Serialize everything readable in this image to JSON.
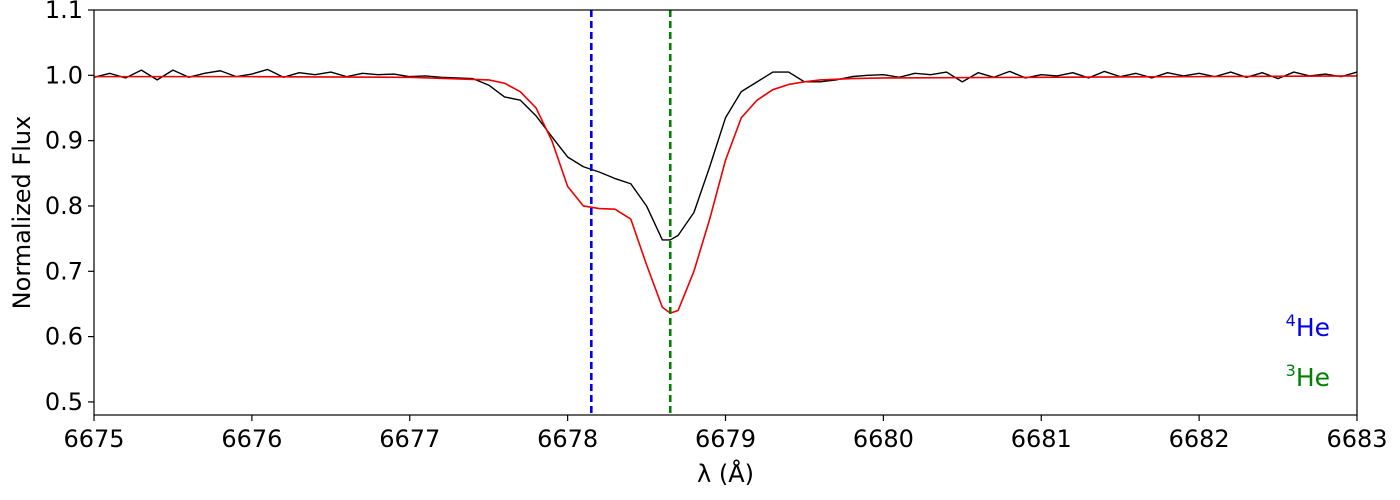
{
  "chart_data": {
    "type": "line",
    "xlabel": "λ (Å)",
    "ylabel": "Normalized Flux",
    "xlim": [
      6675,
      6683
    ],
    "ylim": [
      0.48,
      1.1
    ],
    "xticks": [
      "6675",
      "6676",
      "6677",
      "6678",
      "6679",
      "6680",
      "6681",
      "6682",
      "6683"
    ],
    "yticks": [
      "0.5",
      "0.6",
      "0.7",
      "0.8",
      "0.9",
      "1.0",
      "1.1"
    ],
    "grid": false,
    "vertical_lines": [
      {
        "x": 6678.15,
        "color": "#0000ee",
        "style": "dashed"
      },
      {
        "x": 6678.65,
        "color": "#008000",
        "style": "dashed"
      }
    ],
    "annotations": [
      {
        "sup": "4",
        "text": "He",
        "color": "#0000ee"
      },
      {
        "sup": "3",
        "text": "He",
        "color": "#008000"
      }
    ],
    "series": [
      {
        "color": "#000000",
        "x": [
          6675.0,
          6675.1,
          6675.2,
          6675.3,
          6675.4,
          6675.5,
          6675.6,
          6675.7,
          6675.8,
          6675.9,
          6676.0,
          6676.1,
          6676.2,
          6676.3,
          6676.4,
          6676.5,
          6676.6,
          6676.7,
          6676.8,
          6676.9,
          6677.0,
          6677.1,
          6677.2,
          6677.3,
          6677.4,
          6677.5,
          6677.6,
          6677.7,
          6677.8,
          6677.9,
          6678.0,
          6678.1,
          6678.2,
          6678.3,
          6678.4,
          6678.5,
          6678.6,
          6678.65,
          6678.7,
          6678.8,
          6678.9,
          6679.0,
          6679.1,
          6679.2,
          6679.3,
          6679.4,
          6679.5,
          6679.6,
          6679.7,
          6679.8,
          6679.9,
          6680.0,
          6680.1,
          6680.2,
          6680.3,
          6680.4,
          6680.5,
          6680.6,
          6680.7,
          6680.8,
          6680.9,
          6681.0,
          6681.1,
          6681.2,
          6681.3,
          6681.4,
          6681.5,
          6681.6,
          6681.7,
          6681.8,
          6681.9,
          6682.0,
          6682.1,
          6682.2,
          6682.3,
          6682.4,
          6682.5,
          6682.6,
          6682.7,
          6682.8,
          6682.9,
          6683.0
        ],
        "y": [
          0.997,
          1.003,
          0.996,
          1.008,
          0.993,
          1.008,
          0.997,
          1.003,
          1.007,
          0.998,
          1.002,
          1.009,
          0.997,
          1.004,
          1.001,
          1.005,
          0.998,
          1.003,
          1.001,
          1.002,
          0.998,
          0.999,
          0.997,
          0.996,
          0.995,
          0.985,
          0.967,
          0.962,
          0.938,
          0.906,
          0.875,
          0.86,
          0.852,
          0.842,
          0.834,
          0.8,
          0.748,
          0.748,
          0.755,
          0.79,
          0.86,
          0.935,
          0.975,
          0.99,
          1.005,
          1.005,
          0.99,
          0.99,
          0.993,
          0.998,
          1.0,
          1.001,
          0.997,
          1.003,
          1.001,
          1.005,
          0.99,
          1.004,
          0.997,
          1.006,
          0.996,
          1.001,
          0.999,
          1.004,
          0.996,
          1.006,
          0.998,
          1.003,
          0.996,
          1.004,
          0.999,
          1.003,
          0.998,
          1.005,
          0.997,
          1.004,
          0.995,
          1.005,
          0.999,
          1.002,
          0.998,
          1.005
        ]
      },
      {
        "color": "#ee0000",
        "x": [
          6675.0,
          6676.0,
          6677.0,
          6677.5,
          6677.6,
          6677.7,
          6677.8,
          6677.9,
          6678.0,
          6678.1,
          6678.2,
          6678.3,
          6678.4,
          6678.5,
          6678.6,
          6678.65,
          6678.7,
          6678.8,
          6678.9,
          6679.0,
          6679.1,
          6679.2,
          6679.3,
          6679.4,
          6679.5,
          6679.6,
          6679.8,
          6680.0,
          6681.0,
          6682.0,
          6683.0
        ],
        "y": [
          0.998,
          0.998,
          0.997,
          0.993,
          0.988,
          0.975,
          0.95,
          0.9,
          0.83,
          0.8,
          0.796,
          0.795,
          0.78,
          0.71,
          0.645,
          0.636,
          0.64,
          0.7,
          0.78,
          0.87,
          0.935,
          0.962,
          0.978,
          0.986,
          0.99,
          0.993,
          0.995,
          0.996,
          0.997,
          0.998,
          0.999
        ]
      }
    ]
  }
}
